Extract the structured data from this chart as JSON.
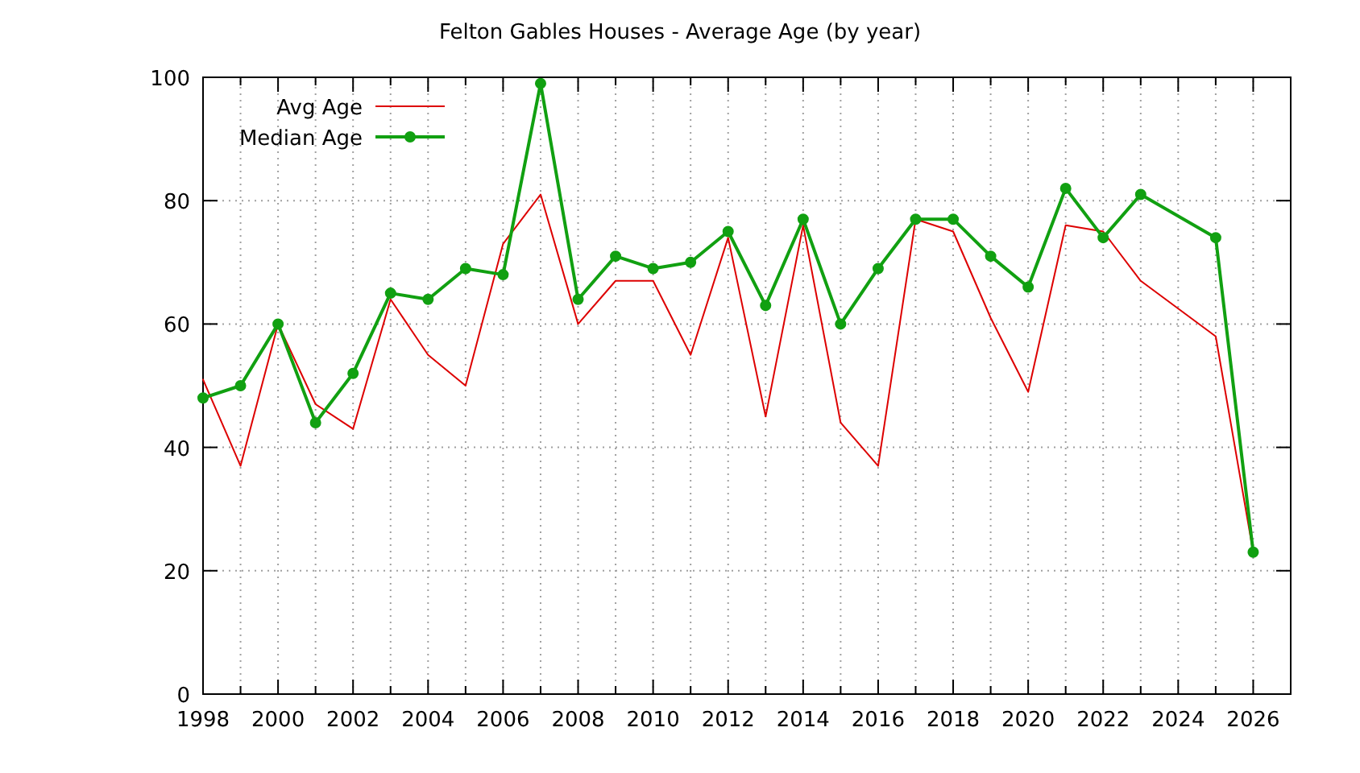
{
  "chart_data": {
    "type": "line",
    "title": "Felton Gables Houses - Average Age (by year)",
    "xlim": [
      1998,
      2027
    ],
    "xticks": [
      1998,
      {
        "value": 1999,
        "label": null
      },
      2000,
      {
        "value": 2001,
        "label": null
      },
      2002,
      {
        "value": 2003,
        "label": null
      },
      2004,
      {
        "value": 2005,
        "label": null
      },
      2006,
      {
        "value": 2007,
        "label": null
      },
      2008,
      {
        "value": 2009,
        "label": null
      },
      2010,
      {
        "value": 2011,
        "label": null
      },
      2012,
      {
        "value": 2013,
        "label": null
      },
      2014,
      {
        "value": 2015,
        "label": null
      },
      2016,
      {
        "value": 2017,
        "label": null
      },
      2018,
      {
        "value": 2019,
        "label": null
      },
      2020,
      {
        "value": 2021,
        "label": null
      },
      2022,
      {
        "value": 2023,
        "label": null
      },
      2024,
      {
        "value": 2025,
        "label": null
      },
      2026
    ],
    "ylim": [
      0,
      100
    ],
    "yticks": [
      0,
      20,
      40,
      60,
      80,
      100
    ],
    "grid": true,
    "legend": "top left",
    "series": [
      {
        "name": "Avg Age",
        "color": "#dd0000",
        "marker": "none",
        "x": [
          1998,
          1999,
          2000,
          2001,
          2002,
          2003,
          2004,
          2005,
          2006,
          2007,
          2008,
          2009,
          2010,
          2011,
          2012,
          2013,
          2014,
          2015,
          2016,
          2017,
          2018,
          2019,
          2020,
          2021,
          2022,
          2023,
          2025,
          2026
        ],
        "values": [
          51,
          37,
          60,
          47,
          43,
          64,
          55,
          50,
          73,
          81,
          60,
          67,
          67,
          55,
          74,
          45,
          76,
          44,
          37,
          77,
          75,
          61,
          49,
          76,
          75,
          67,
          58,
          23
        ]
      },
      {
        "name": "Median Age",
        "color": "#11a011",
        "marker": "circle",
        "x": [
          1998,
          1999,
          2000,
          2001,
          2002,
          2003,
          2004,
          2005,
          2006,
          2007,
          2008,
          2009,
          2010,
          2011,
          2012,
          2013,
          2014,
          2015,
          2016,
          2017,
          2018,
          2019,
          2020,
          2021,
          2022,
          2023,
          2025,
          2026
        ],
        "values": [
          48,
          50,
          60,
          44,
          52,
          65,
          64,
          69,
          68,
          99,
          64,
          71,
          69,
          70,
          75,
          63,
          77,
          60,
          69,
          77,
          77,
          71,
          66,
          82,
          74,
          81,
          74,
          23
        ]
      }
    ]
  }
}
